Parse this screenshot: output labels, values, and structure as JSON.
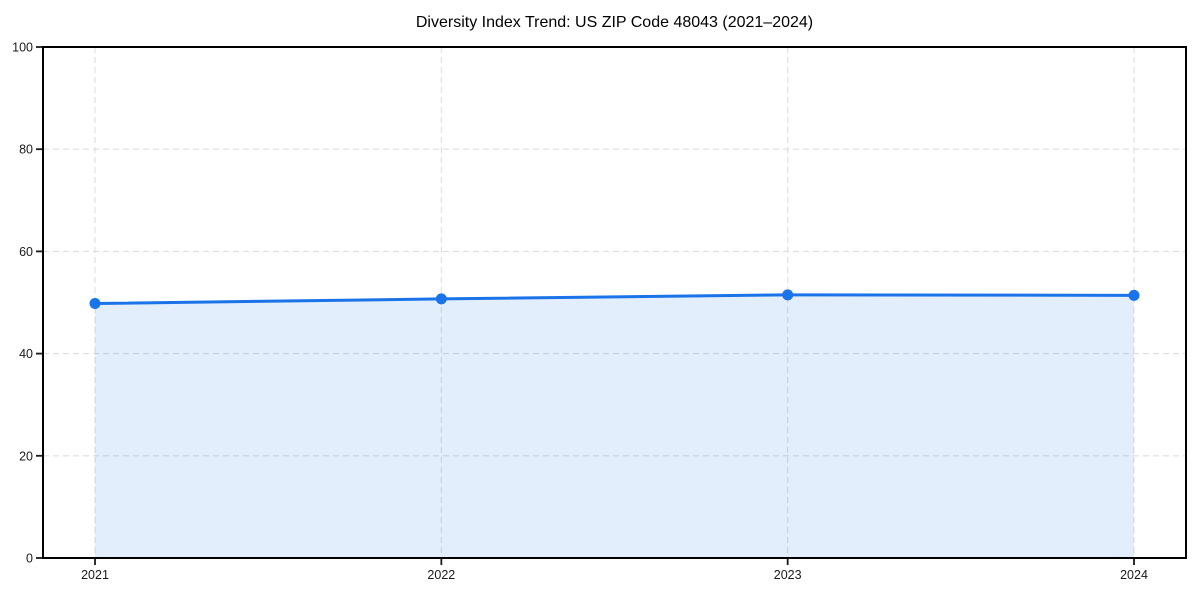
{
  "chart_data": {
    "type": "line",
    "title": "Diversity Index Trend: US ZIP Code 48043 (2021–2024)",
    "categories": [
      "2021",
      "2022",
      "2023",
      "2024"
    ],
    "series": [
      {
        "name": "Diversity Index",
        "values": [
          49.8,
          50.7,
          51.5,
          51.4
        ]
      }
    ],
    "xlabel": "",
    "ylabel": "",
    "ylim": [
      0,
      100
    ],
    "yticks": [
      0,
      20,
      40,
      60,
      80,
      100
    ],
    "grid": true,
    "grid_style": "dashed",
    "legend_position": "none",
    "area_fill": true,
    "style": {
      "line_color": "#1a73e8",
      "marker_color": "#1a73e8",
      "fill_color": "#1a73e8",
      "fill_opacity": 0.12,
      "grid_color": "#dedede",
      "spine_color": "#000000",
      "tick_mark_color": "#1a1a1a",
      "tick_label_color": "#1a1a1a",
      "title_color": "#000000",
      "background_color": "#ffffff"
    }
  }
}
